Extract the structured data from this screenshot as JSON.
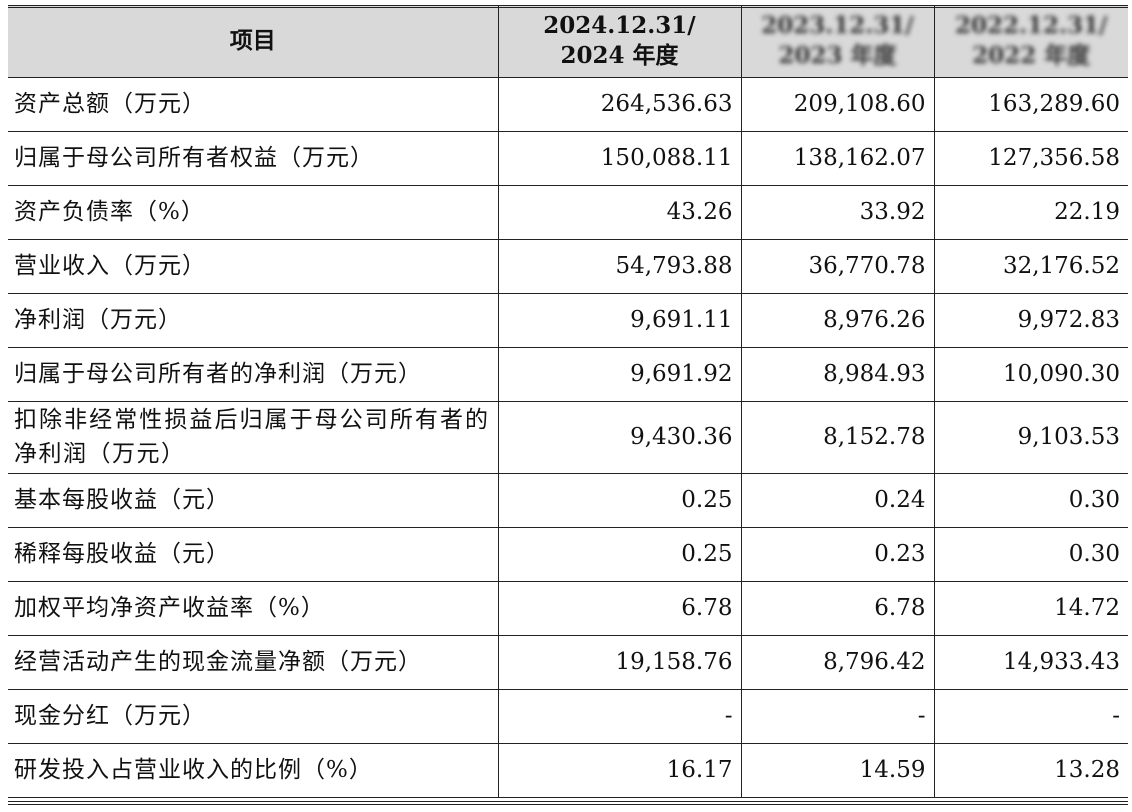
{
  "table": {
    "header": {
      "item_label": "项目",
      "col1_line1": "2024.12.31/",
      "col1_line2": "2024 年度",
      "col2_line1": "2023.12.31/",
      "col2_line2": "2023 年度",
      "col3_line1": "2022.12.31/",
      "col3_line2": "2022 年度"
    },
    "rows": [
      {
        "label": "资产总额（万元）",
        "v2024": "264,536.63",
        "v2023": "209,108.60",
        "v2022": "163,289.60"
      },
      {
        "label": "归属于母公司所有者权益（万元）",
        "v2024": "150,088.11",
        "v2023": "138,162.07",
        "v2022": "127,356.58"
      },
      {
        "label": "资产负债率（%）",
        "v2024": "43.26",
        "v2023": "33.92",
        "v2022": "22.19"
      },
      {
        "label": "营业收入（万元）",
        "v2024": "54,793.88",
        "v2023": "36,770.78",
        "v2022": "32,176.52"
      },
      {
        "label": "净利润（万元）",
        "v2024": "9,691.11",
        "v2023": "8,976.26",
        "v2022": "9,972.83"
      },
      {
        "label": "归属于母公司所有者的净利润（万元）",
        "v2024": "9,691.92",
        "v2023": "8,984.93",
        "v2022": "10,090.30"
      },
      {
        "label": "扣除非经常性损益后归属于母公司所有者的净利润（万元）",
        "v2024": "9,430.36",
        "v2023": "8,152.78",
        "v2022": "9,103.53"
      },
      {
        "label": "基本每股收益（元）",
        "v2024": "0.25",
        "v2023": "0.24",
        "v2022": "0.30"
      },
      {
        "label": "稀释每股收益（元）",
        "v2024": "0.25",
        "v2023": "0.23",
        "v2022": "0.30"
      },
      {
        "label": "加权平均净资产收益率（%）",
        "v2024": "6.78",
        "v2023": "6.78",
        "v2022": "14.72"
      },
      {
        "label": "经营活动产生的现金流量净额（万元）",
        "v2024": "19,158.76",
        "v2023": "8,796.42",
        "v2022": "14,933.43"
      },
      {
        "label": "现金分红（万元）",
        "v2024": "-",
        "v2023": "-",
        "v2022": "-"
      },
      {
        "label": "研发投入占营业收入的比例（%）",
        "v2024": "16.17",
        "v2023": "14.59",
        "v2022": "13.28"
      }
    ]
  }
}
